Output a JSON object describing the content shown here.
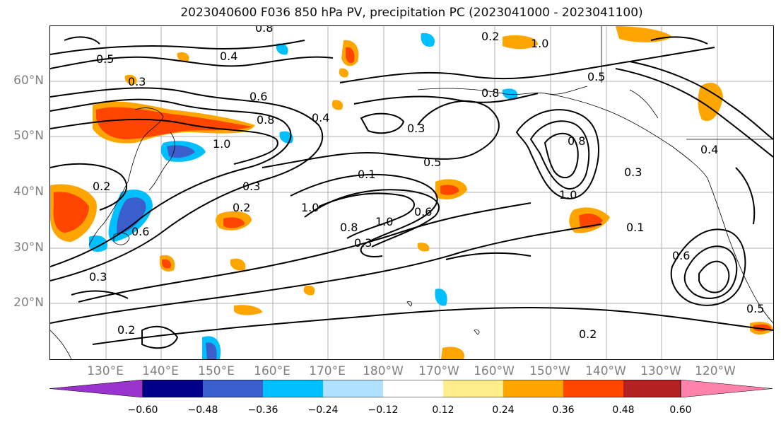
{
  "title": "2023040600 F036 850 hPa PV, precipitation PC (2023041000 - 2023041100)",
  "map": {
    "lat_labels": [
      "60°N",
      "50°N",
      "40°N",
      "30°N",
      "20°N"
    ],
    "lon_labels": [
      "130°E",
      "140°E",
      "150°E",
      "160°E",
      "170°E",
      "180°W",
      "170°W",
      "160°W",
      "150°W",
      "140°W",
      "130°W",
      "120°W"
    ],
    "contour_labels": [
      "0.8",
      "0.5",
      "0.4",
      "0.3",
      "0.6",
      "0.8",
      "0.4",
      "0.2",
      "1.0",
      "0.3",
      "0.3",
      "0.6",
      "0.2",
      "0.3",
      "0.5",
      "0.1",
      "1.0",
      "0.8",
      "1.0",
      "0.6",
      "0.5",
      "0.8",
      "1.0",
      "0.3",
      "1.0",
      "0.1",
      "0.4",
      "0.2",
      "0.5",
      "0.2",
      "0.2",
      "0.8",
      "0.6",
      "0.3"
    ]
  },
  "colorbar": {
    "ticks": [
      "−0.60",
      "−0.48",
      "−0.36",
      "−0.24",
      "−0.12",
      "0.12",
      "0.24",
      "0.36",
      "0.48",
      "0.60"
    ],
    "colors": [
      "#9a32cd",
      "#00008b",
      "#3a5fcd",
      "#00bfff",
      "#b0e2ff",
      "#ffffff",
      "#ffec8b",
      "#ffa500",
      "#ff4500",
      "#b22222",
      "#ff82ab"
    ]
  }
}
